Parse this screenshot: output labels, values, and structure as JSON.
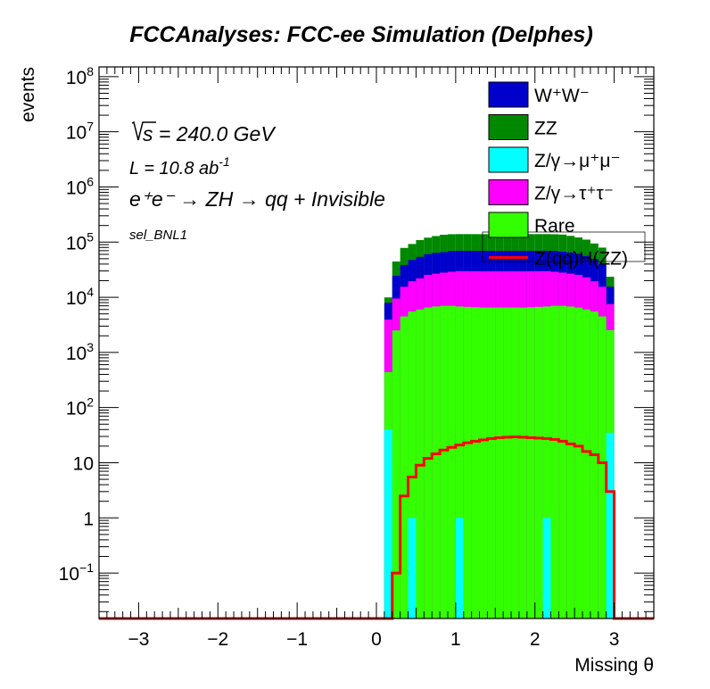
{
  "chart_data": {
    "type": "histogram-stacked",
    "title": "FCCAnalyses: FCC-ee Simulation (Delphes)",
    "xlabel": "Missing θ",
    "ylabel": "events",
    "xlim": [
      -3.5,
      3.5
    ],
    "ylim": [
      0.015,
      150000000
    ],
    "log_y": true,
    "x_ticks": [
      -3,
      -2,
      -1,
      0,
      1,
      2,
      3
    ],
    "y_ticks": [
      {
        "v": 0.1,
        "base": "10",
        "exp": "−1"
      },
      {
        "v": 1,
        "base": "1",
        "exp": ""
      },
      {
        "v": 10,
        "base": "10",
        "exp": ""
      },
      {
        "v": 100,
        "base": "10",
        "exp": "2"
      },
      {
        "v": 1000,
        "base": "10",
        "exp": "3"
      },
      {
        "v": 10000,
        "base": "10",
        "exp": "4"
      },
      {
        "v": 100000,
        "base": "10",
        "exp": "5"
      },
      {
        "v": 1000000,
        "base": "10",
        "exp": "6"
      },
      {
        "v": 10000000,
        "base": "10",
        "exp": "7"
      },
      {
        "v": 100000000,
        "base": "10",
        "exp": "8"
      }
    ],
    "annotations": {
      "sqrt_s": "s = 240.0 GeV",
      "sqrt_sym": "√",
      "lumi_prefix": "L = 10.8 ab",
      "lumi_exp": "-1",
      "process": "e⁺e⁻ → ZH → qq + Invisible",
      "selection": "sel_BNL1"
    },
    "legend_position": "top-right",
    "bin_edges": [
      0.1,
      0.2,
      0.3,
      0.4,
      0.5,
      0.6,
      0.7,
      0.8,
      0.9,
      1.0,
      1.1,
      1.2,
      1.3,
      1.4,
      1.5,
      1.6,
      1.7,
      1.8,
      1.9,
      2.0,
      2.1,
      2.2,
      2.3,
      2.4,
      2.5,
      2.6,
      2.7,
      2.8,
      2.9,
      3.0
    ],
    "stacked_series": [
      {
        "name": "Z/γ→μ⁺μ⁻",
        "color": "#00ffff",
        "values": [
          40,
          0,
          0,
          1,
          0,
          0,
          0,
          0,
          0,
          1,
          0,
          0,
          0,
          0,
          0,
          0,
          0,
          0,
          0,
          0,
          1,
          0,
          0,
          0,
          0,
          0,
          0,
          0,
          35
        ]
      },
      {
        "name": "Rare",
        "color": "#33ff00",
        "values": [
          400,
          2500,
          4500,
          5500,
          6000,
          6500,
          6800,
          7000,
          7000,
          6800,
          6700,
          6600,
          6500,
          6500,
          6500,
          6500,
          6500,
          6500,
          6600,
          6700,
          6800,
          7000,
          7000,
          6800,
          6500,
          6000,
          5500,
          4500,
          2500
        ]
      },
      {
        "name": "Z/γ→τ⁺τ⁻",
        "color": "#ff00ff",
        "values": [
          3500,
          7000,
          11000,
          14000,
          16000,
          19000,
          20000,
          21000,
          22000,
          23000,
          23000,
          23000,
          23000,
          23000,
          23000,
          23000,
          23000,
          23000,
          23000,
          23000,
          23000,
          22000,
          21000,
          20000,
          19000,
          17000,
          14000,
          11000,
          5000
        ]
      },
      {
        "name": "W⁺W⁻",
        "color": "#0000cc",
        "values": [
          4000,
          15000,
          23000,
          28000,
          32000,
          35000,
          37000,
          38000,
          40000,
          40000,
          40000,
          40000,
          40000,
          40000,
          40000,
          40000,
          40000,
          40000,
          40000,
          40000,
          40000,
          40000,
          39000,
          38000,
          36000,
          33000,
          30000,
          24000,
          8000
        ]
      },
      {
        "name": "ZZ",
        "color": "#008800",
        "values": [
          2000,
          20000,
          40000,
          45000,
          55000,
          60000,
          65000,
          70000,
          70000,
          70000,
          70000,
          70000,
          70000,
          70000,
          70000,
          70000,
          70000,
          70000,
          70000,
          70000,
          70000,
          70000,
          70000,
          65000,
          60000,
          55000,
          45000,
          40000,
          8000
        ]
      }
    ],
    "line_series": [
      {
        "name": "Z(qq)H(ZZ)",
        "color": "#ff0000",
        "values": [
          0.0001,
          0.1,
          2.5,
          5.5,
          9,
          12,
          14.5,
          17,
          19,
          21,
          23,
          24.5,
          26,
          27.5,
          28.5,
          29,
          29.5,
          29,
          28.5,
          28,
          27.5,
          26.5,
          24.5,
          22,
          20,
          16,
          14,
          10,
          3
        ]
      }
    ],
    "legend": [
      {
        "label": "W⁺W⁻",
        "color": "#0000cc",
        "style": "box"
      },
      {
        "label": "ZZ",
        "color": "#008800",
        "style": "box"
      },
      {
        "label": "Z/γ→μ⁺μ⁻",
        "color": "#00ffff",
        "style": "box"
      },
      {
        "label": "Z/γ→τ⁺τ⁻",
        "color": "#ff00ff",
        "style": "box"
      },
      {
        "label": "Rare",
        "color": "#33ff00",
        "style": "box"
      },
      {
        "label": "Z(qq)H(ZZ)",
        "color": "#ff0000",
        "style": "line"
      }
    ]
  }
}
